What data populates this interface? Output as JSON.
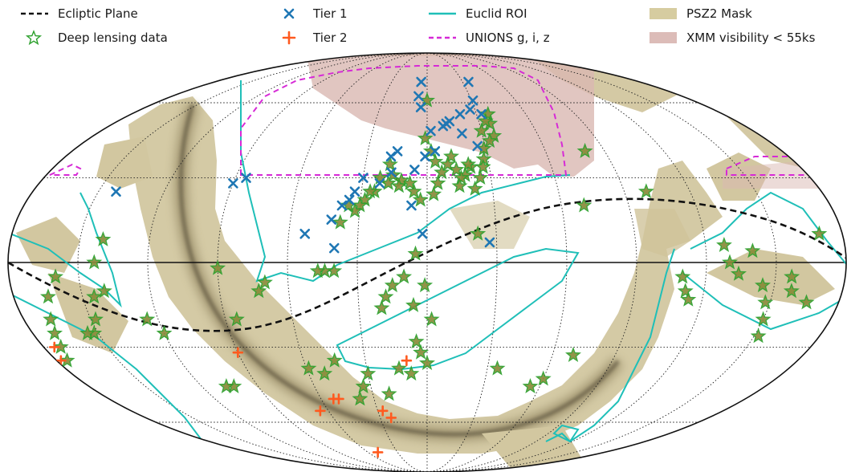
{
  "chart_data": {
    "type": "scatter",
    "projection": "mollweide",
    "grid": true,
    "legend_placement": "top",
    "legend": [
      {
        "key": "ecliptic",
        "label": "Ecliptic Plane",
        "kind": "line",
        "style": "dashed",
        "color": "#111111"
      },
      {
        "key": "deep",
        "label": "Deep lensing data",
        "kind": "marker",
        "marker": "star-open",
        "color": "#2ca02c"
      },
      {
        "key": "tier1",
        "label": "Tier 1",
        "kind": "marker",
        "marker": "x",
        "color": "#1f77b4"
      },
      {
        "key": "tier2",
        "label": "Tier 2",
        "kind": "marker",
        "marker": "plus",
        "color": "#ff5a1f"
      },
      {
        "key": "euclid",
        "label": "Euclid ROI",
        "kind": "line",
        "style": "solid",
        "color": "#1fbfb8"
      },
      {
        "key": "unions",
        "label": "UNIONS g, i, z",
        "kind": "line",
        "style": "dashed",
        "color": "#d62ad6"
      },
      {
        "key": "psz2",
        "label": "PSZ2 Mask",
        "kind": "patch",
        "color": "#d6cca0"
      },
      {
        "key": "xmm",
        "label": "XMM visibility < 55ks",
        "kind": "patch",
        "color": "#dcbcb8"
      }
    ],
    "series": [
      {
        "name": "Tier 1",
        "key": "tier1",
        "points": [
          [
            35,
            70
          ],
          [
            31,
            61
          ],
          [
            33,
            55
          ],
          [
            27,
            57
          ],
          [
            26,
            42
          ],
          [
            20,
            55
          ],
          [
            19,
            47
          ],
          [
            13,
            52
          ],
          [
            11,
            51
          ],
          [
            9,
            50
          ],
          [
            4,
            40
          ],
          [
            2,
            48
          ],
          [
            -5,
            70
          ],
          [
            -6,
            63
          ],
          [
            -4,
            58
          ],
          [
            -1,
            38
          ],
          [
            -6,
            33
          ],
          [
            -2,
            10
          ],
          [
            -7,
            20
          ],
          [
            -15,
            40
          ],
          [
            -18,
            38
          ],
          [
            -17,
            32
          ],
          [
            -22,
            28
          ],
          [
            -30,
            30
          ],
          [
            -33,
            25
          ],
          [
            -35,
            22
          ],
          [
            -38,
            20
          ],
          [
            -42,
            15
          ],
          [
            -40,
            5
          ],
          [
            -53,
            10
          ],
          [
            -85,
            30
          ],
          [
            -90,
            28
          ],
          [
            -142,
            25
          ],
          [
            27,
            7
          ]
        ]
      },
      {
        "name": "Tier 2",
        "key": "tier2",
        "points": [
          [
            -175,
            -30
          ],
          [
            -178,
            -35
          ],
          [
            -10,
            -35
          ],
          [
            -23,
            -58
          ],
          [
            -27,
            -55
          ],
          [
            -50,
            -50
          ],
          [
            -53,
            -50
          ],
          [
            -65,
            -55
          ],
          [
            -50,
            -75
          ],
          [
            -90,
            -32
          ]
        ]
      },
      {
        "name": "Deep lensing data",
        "key": "deep",
        "points": [
          [
            37,
            55
          ],
          [
            36,
            51
          ],
          [
            36,
            46
          ],
          [
            34,
            52
          ],
          [
            33,
            44
          ],
          [
            30,
            48
          ],
          [
            29,
            41
          ],
          [
            28,
            37
          ],
          [
            27,
            34
          ],
          [
            25,
            30
          ],
          [
            22,
            26
          ],
          [
            21,
            34
          ],
          [
            20,
            35
          ],
          [
            18,
            31
          ],
          [
            16,
            30
          ],
          [
            15,
            27
          ],
          [
            14,
            33
          ],
          [
            12,
            38
          ],
          [
            10,
            35
          ],
          [
            7,
            32
          ],
          [
            5,
            28
          ],
          [
            4,
            36
          ],
          [
            3,
            24
          ],
          [
            2,
            40
          ],
          [
            0,
            61
          ],
          [
            -1,
            45
          ],
          [
            -3,
            22
          ],
          [
            -6,
            25
          ],
          [
            -8,
            28
          ],
          [
            -12,
            29
          ],
          [
            -13,
            27
          ],
          [
            -16,
            31
          ],
          [
            -18,
            28
          ],
          [
            -18,
            35
          ],
          [
            -22,
            30
          ],
          [
            -24,
            25
          ],
          [
            -26,
            25
          ],
          [
            -28,
            22
          ],
          [
            -30,
            20
          ],
          [
            -32,
            18
          ],
          [
            -35,
            20
          ],
          [
            -38,
            14
          ],
          [
            -40,
            -3
          ],
          [
            -44,
            -3
          ],
          [
            -47,
            -3
          ],
          [
            -70,
            -7
          ],
          [
            -73,
            -10
          ],
          [
            -85,
            -20
          ],
          [
            -140,
            -10
          ],
          [
            -140,
            8
          ],
          [
            -143,
            0
          ],
          [
            -145,
            -12
          ],
          [
            -148,
            -20
          ],
          [
            -152,
            -25
          ],
          [
            -155,
            -25
          ],
          [
            -160,
            -5
          ],
          [
            -165,
            -12
          ],
          [
            -168,
            -20
          ],
          [
            -170,
            -25
          ],
          [
            -172,
            -30
          ],
          [
            -175,
            -35
          ],
          [
            -6,
            -15
          ],
          [
            -5,
            -28
          ],
          [
            -3,
            -32
          ],
          [
            0,
            -36
          ],
          [
            2,
            -20
          ],
          [
            -1,
            -8
          ],
          [
            -8,
            -40
          ],
          [
            -14,
            -38
          ],
          [
            -21,
            -48
          ],
          [
            -34,
            -45
          ],
          [
            -38,
            -50
          ],
          [
            -52,
            -40
          ],
          [
            -59,
            -38
          ],
          [
            -103,
            -45
          ],
          [
            -107,
            -45
          ],
          [
            110,
            -5
          ],
          [
            112,
            -10
          ],
          [
            114,
            -13
          ],
          [
            70,
            -33
          ],
          [
            158,
            -10
          ],
          [
            166,
            -14
          ],
          [
            170,
            10
          ],
          [
            140,
            4
          ],
          [
            145,
            -8
          ],
          [
            148,
            -14
          ],
          [
            150,
            -20
          ],
          [
            152,
            -26
          ],
          [
            157,
            -5
          ],
          [
            -120,
            -25
          ],
          [
            -125,
            -20
          ],
          [
            128,
            6
          ],
          [
            130,
            0
          ],
          [
            134,
            -4
          ],
          [
            22,
            10
          ],
          [
            -90,
            -2
          ],
          [
            60,
            -42
          ],
          [
            55,
            -45
          ],
          [
            -5,
            3
          ],
          [
            -10,
            -5
          ],
          [
            -15,
            -8
          ],
          [
            -18,
            -12
          ],
          [
            -20,
            -16
          ],
          [
            -45,
            -35
          ],
          [
            -30,
            -40
          ],
          [
            35,
            -38
          ],
          [
            80,
            40
          ],
          [
            70,
            20
          ],
          [
            100,
            25
          ]
        ]
      }
    ]
  }
}
